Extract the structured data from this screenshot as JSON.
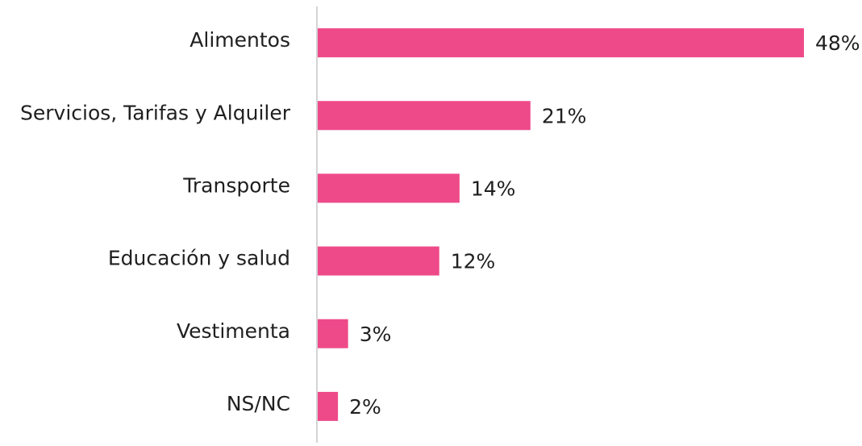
{
  "chart_data": {
    "type": "bar",
    "orientation": "horizontal",
    "categories": [
      "Alimentos",
      "Servicios, Tarifas y Alquiler",
      "Transporte",
      "Educación y salud",
      "Vestimenta",
      "NS/NC"
    ],
    "values": [
      48,
      21,
      14,
      12,
      3,
      2
    ],
    "value_labels": [
      "48%",
      "21%",
      "14%",
      "12%",
      "3%",
      "2%"
    ],
    "color": "#ee4a8a"
  }
}
